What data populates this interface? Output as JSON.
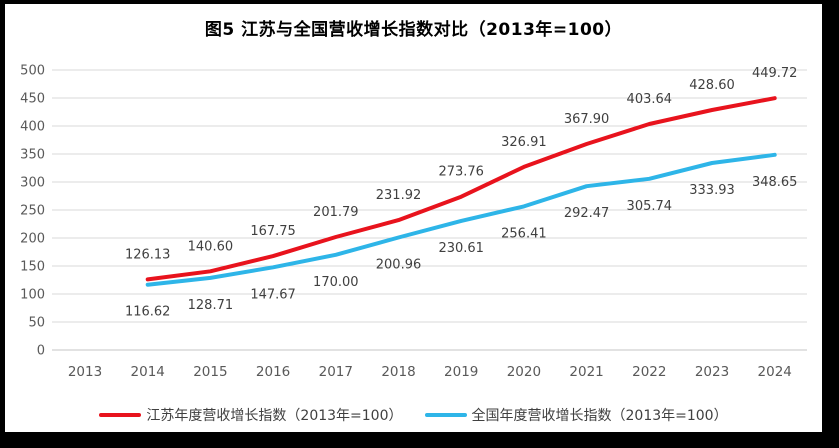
{
  "title": "图5  江苏与全国营收增长指数对比（2013年=100）",
  "colors": {
    "frame": "#000000",
    "background": "#ffffff",
    "gridline": "#d9d9d9",
    "axis_line": "#c6c6c6",
    "tick_text": "#595959",
    "data_label_text": "#404040",
    "title_text": "#000000",
    "jiangsu_line": "#e8131d",
    "national_line": "#2eb5e8"
  },
  "chart_data": {
    "type": "line",
    "title": "图5  江苏与全国营收增长指数对比（2013年=100）",
    "xlabel": "",
    "ylabel": "",
    "categories": [
      "2013",
      "2014",
      "2015",
      "2016",
      "2017",
      "2018",
      "2019",
      "2020",
      "2021",
      "2022",
      "2023",
      "2024"
    ],
    "series": [
      {
        "name": "江苏年度营收增长指数（2013年=100）",
        "color": "#e8131d",
        "label_position": "above",
        "values": [
          null,
          126.13,
          140.6,
          167.75,
          201.79,
          231.92,
          273.76,
          326.91,
          367.9,
          403.64,
          428.6,
          449.72
        ]
      },
      {
        "name": "全国年度营收增长指数（2013年=100）",
        "color": "#2eb5e8",
        "label_position": "below",
        "values": [
          null,
          116.62,
          128.71,
          147.67,
          170.0,
          200.96,
          230.61,
          256.41,
          292.47,
          305.74,
          333.93,
          348.65
        ]
      }
    ],
    "ylim": [
      0,
      500
    ],
    "y_tick_step": 50,
    "grid": true,
    "legend_position": "bottom"
  }
}
